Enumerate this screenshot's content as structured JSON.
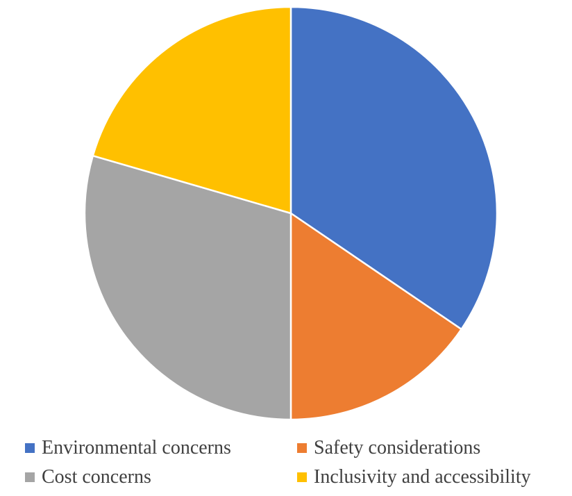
{
  "chart_data": {
    "type": "pie",
    "title": "",
    "start_angle_deg": 0,
    "direction": "clockwise",
    "legend_position": "bottom",
    "series": [
      {
        "name": "Environmental concerns",
        "value": 34.5,
        "color": "#4472C4"
      },
      {
        "name": "Safety considerations",
        "value": 15.5,
        "color": "#ED7D31"
      },
      {
        "name": "Cost concerns",
        "value": 29.5,
        "color": "#A5A5A5"
      },
      {
        "name": "Inclusivity and accessibility",
        "value": 20.5,
        "color": "#FFC000"
      }
    ]
  },
  "legend": {
    "items": [
      {
        "label": "Environmental concerns",
        "color": "#4472C4"
      },
      {
        "label": "Safety considerations",
        "color": "#ED7D31"
      },
      {
        "label": "Cost concerns",
        "color": "#A5A5A5"
      },
      {
        "label": "Inclusivity and accessibility",
        "color": "#FFC000"
      }
    ]
  }
}
